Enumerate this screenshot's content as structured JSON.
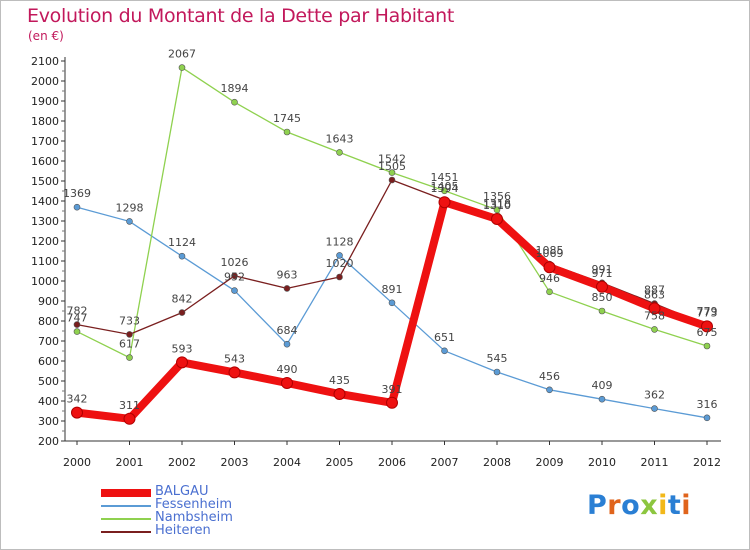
{
  "title": "Evolution du Montant de la Dette par Habitant",
  "unit_label": "(en €)",
  "logo": {
    "text": "Proxiti",
    "letter_colors": [
      "#2a7fd4",
      "#e0641c",
      "#2a7fd4",
      "#8cc63f",
      "#f2b81a",
      "#2a7fd4",
      "#e0641c"
    ]
  },
  "chart_data": {
    "type": "line",
    "title": "Evolution du Montant de la Dette par Habitant",
    "ylabel": "(en €)",
    "xlabel": "",
    "x": [
      "2000",
      "2001",
      "2002",
      "2003",
      "2004",
      "2005",
      "2006",
      "2007",
      "2008",
      "2009",
      "2010",
      "2011",
      "2012"
    ],
    "ylim": [
      200,
      2100
    ],
    "yticks": [
      200,
      300,
      400,
      500,
      600,
      700,
      800,
      900,
      1000,
      1100,
      1200,
      1300,
      1400,
      1500,
      1600,
      1700,
      1800,
      1900,
      2000,
      2100
    ],
    "grid": false,
    "legend_position": "bottom-left",
    "series": [
      {
        "name": "Fessenheim",
        "color": "#5b9bd5",
        "values": [
          1369,
          1298,
          1124,
          952,
          684,
          1128,
          891,
          651,
          545,
          456,
          409,
          362,
          316
        ]
      },
      {
        "name": "Nambsheim",
        "color": "#8fd14f",
        "values": [
          747,
          617,
          2067,
          1894,
          1745,
          1643,
          1542,
          1451,
          1356,
          946,
          850,
          758,
          675
        ]
      },
      {
        "name": "Heiteren",
        "color": "#7a1f1f",
        "values": [
          782,
          733,
          842,
          1026,
          963,
          1020,
          1505,
          1405,
          1318,
          1085,
          991,
          887,
          779
        ]
      },
      {
        "name": "BALGAU",
        "color": "#ee1111",
        "values": [
          342,
          311,
          593,
          543,
          490,
          435,
          391,
          1394,
          1310,
          1069,
          971,
          863,
          773
        ]
      }
    ],
    "legend_order": [
      "BALGAU",
      "Fessenheim",
      "Nambsheim",
      "Heiteren"
    ]
  }
}
